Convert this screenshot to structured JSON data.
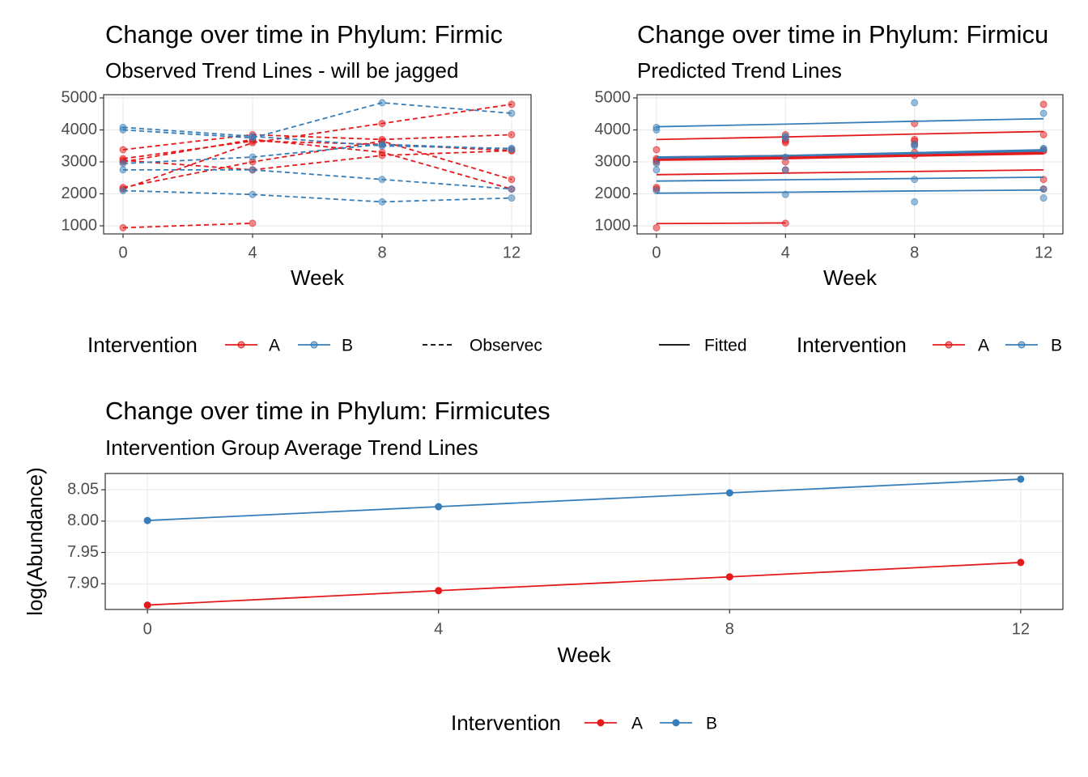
{
  "chart_data": [
    {
      "type": "line",
      "title": "Change over time in Phylum: Firmic",
      "subtitle": "Observed Trend Lines - will be jagged",
      "xlabel": "Week",
      "x": [
        0,
        4,
        8,
        12
      ],
      "xlim": [
        -0.6,
        12.6
      ],
      "xticks": [
        0,
        4,
        8,
        12
      ],
      "ylim": [
        747,
        5101
      ],
      "yticks": [
        1000,
        2000,
        3000,
        4000,
        5000
      ],
      "grid": true,
      "line_style": "dashed",
      "linetype_label": "Observec",
      "legend_title": "Intervention",
      "groups": [
        {
          "name": "A",
          "color": "#e41a1c",
          "subjects": [
            {
              "values": [
                940,
                1080,
                null,
                null
              ]
            },
            {
              "values": [
                2150,
                3600,
                4200,
                4800
              ]
            },
            {
              "values": [
                3380,
                3850,
                3700,
                3850
              ]
            },
            {
              "values": [
                3100,
                3650,
                3550,
                3350
              ]
            },
            {
              "values": [
                3050,
                2750,
                3200,
                3350
              ]
            },
            {
              "values": [
                2200,
                3000,
                3650,
                2450
              ]
            },
            {
              "values": [
                3000,
                3700,
                3300,
                2150
              ]
            }
          ]
        },
        {
          "name": "B",
          "color": "#377eb8",
          "subjects": [
            {
              "values": [
                4080,
                3800,
                3500,
                3420
              ]
            },
            {
              "values": [
                4000,
                3750,
                4850,
                4520
              ]
            },
            {
              "values": [
                2950,
                3150,
                3550,
                3400
              ]
            },
            {
              "values": [
                2750,
                2750,
                2450,
                2150
              ]
            },
            {
              "values": [
                2100,
                1980,
                1750,
                1870
              ]
            }
          ]
        }
      ]
    },
    {
      "type": "line",
      "title": "Change over time in Phylum: Firmicu",
      "subtitle": "Predicted Trend Lines",
      "xlabel": "Week",
      "x": [
        0,
        4,
        8,
        12
      ],
      "xlim": [
        -0.6,
        12.6
      ],
      "xticks": [
        0,
        4,
        8,
        12
      ],
      "ylim": [
        747,
        5101
      ],
      "yticks": [
        1000,
        2000,
        3000,
        4000,
        5000
      ],
      "grid": true,
      "line_style": "solid",
      "linetype_label": "Fitted",
      "legend_title": "Intervention",
      "groups": [
        {
          "name": "A",
          "color": "#e41a1c",
          "subjects": [
            {
              "values": [
                940,
                1080,
                null,
                null
              ],
              "fitted": [
                1070,
                1090,
                null,
                null
              ]
            },
            {
              "values": [
                2150,
                3600,
                4200,
                4800
              ],
              "fitted": [
                2600,
                2650,
                2700,
                2750
              ]
            },
            {
              "values": [
                3380,
                3850,
                3700,
                3850
              ],
              "fitted": [
                3700,
                3780,
                3870,
                3950
              ]
            },
            {
              "values": [
                3100,
                3650,
                3550,
                3350
              ],
              "fitted": [
                3150,
                3200,
                3270,
                3330
              ]
            },
            {
              "values": [
                3050,
                2750,
                3200,
                3350
              ],
              "fitted": [
                3050,
                3100,
                3180,
                3250
              ]
            },
            {
              "values": [
                2200,
                3000,
                3650,
                2450
              ],
              "fitted": [
                3100,
                3150,
                3220,
                3300
              ]
            },
            {
              "values": [
                3000,
                3700,
                3300,
                2150
              ],
              "fitted": [
                3080,
                3130,
                3190,
                3260
              ]
            }
          ]
        },
        {
          "name": "B",
          "color": "#377eb8",
          "subjects": [
            {
              "values": [
                4080,
                3800,
                3500,
                3420
              ],
              "fitted": [
                3150,
                3200,
                3290,
                3380
              ]
            },
            {
              "values": [
                4000,
                3750,
                4850,
                4520
              ],
              "fitted": [
                4100,
                4180,
                4270,
                4350
              ]
            },
            {
              "values": [
                2950,
                3150,
                3550,
                3400
              ],
              "fitted": [
                3120,
                3190,
                3260,
                3340
              ]
            },
            {
              "values": [
                2750,
                2750,
                2450,
                2150
              ],
              "fitted": [
                2400,
                2440,
                2480,
                2520
              ]
            },
            {
              "values": [
                2100,
                1980,
                1750,
                1870
              ],
              "fitted": [
                2020,
                2050,
                2090,
                2120
              ]
            }
          ]
        }
      ]
    },
    {
      "type": "line",
      "title": "Change over time in Phylum: Firmicutes",
      "subtitle": "Intervention Group Average Trend Lines",
      "xlabel": "Week",
      "ylabel": "log(Abundance)",
      "x": [
        0,
        4,
        8,
        12
      ],
      "xlim": [
        -0.58,
        12.58
      ],
      "xticks": [
        0,
        4,
        8,
        12
      ],
      "ylim": [
        7.859,
        8.076
      ],
      "yticks": [
        {
          "value": 7.9,
          "label": "7.90"
        },
        7.95,
        {
          "value": 8,
          "label": "8.00"
        },
        8.05
      ],
      "grid": true,
      "line_style": "solid",
      "legend_title": "Intervention",
      "groups": [
        {
          "name": "A",
          "color": "#e41a1c",
          "subjects": [
            {
              "values": [
                7.866,
                7.889,
                7.911,
                7.934
              ]
            }
          ]
        },
        {
          "name": "B",
          "color": "#377eb8",
          "subjects": [
            {
              "values": [
                8.001,
                8.023,
                8.045,
                8.067
              ]
            }
          ]
        }
      ]
    }
  ]
}
